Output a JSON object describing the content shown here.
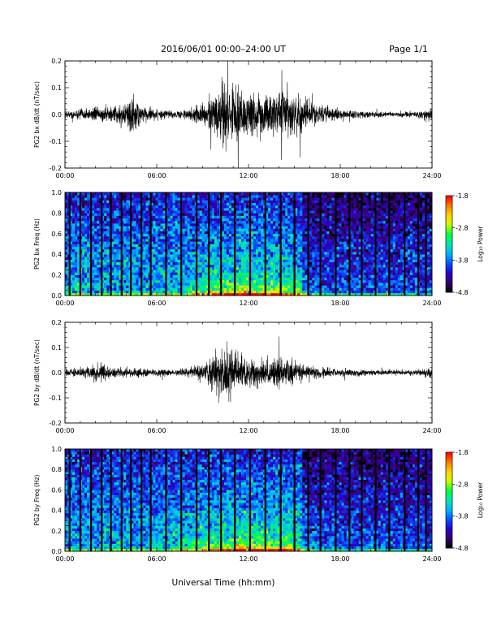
{
  "header": {
    "title": "2016/06/01   00:00–24:00 UT",
    "page": "Page 1/1"
  },
  "x_axis_label": "Universal Time (hh:mm)",
  "colors": {
    "waveform": "#000000",
    "spectrogram_cmap": [
      "#000000",
      "#3b006a",
      "#2a00c8",
      "#0050ff",
      "#00b4ff",
      "#00e6b4",
      "#00ff3c",
      "#c8ff00",
      "#ffd200",
      "#ff7800",
      "#ff0000"
    ]
  },
  "chart_data": [
    {
      "type": "line",
      "ylabel": "PG2 bx dB/dt (nT/sec)",
      "xticks": [
        "00:00",
        "06:00",
        "12:00",
        "18:00",
        "24:00"
      ],
      "xlim": [
        0,
        24
      ],
      "ylim": [
        -0.2,
        0.2
      ],
      "yticks": [
        "0.2",
        "0.1",
        "0.0",
        "-0.1",
        "-0.2"
      ],
      "x_unit": "hours UT",
      "series": [
        {
          "x": [
            0,
            1,
            2,
            3,
            4,
            4.4,
            5,
            6,
            7,
            8,
            9,
            9.5,
            10,
            10.5,
            11,
            11.5,
            12,
            13,
            14,
            14.5,
            15,
            16,
            17,
            18,
            19,
            20,
            21,
            22,
            23,
            24
          ],
          "amplitude": [
            0.015,
            0.02,
            0.025,
            0.03,
            0.04,
            0.09,
            0.035,
            0.02,
            0.015,
            0.02,
            0.04,
            0.07,
            0.1,
            0.14,
            0.12,
            0.1,
            0.09,
            0.08,
            0.08,
            0.1,
            0.07,
            0.05,
            0.03,
            0.02,
            0.015,
            0.012,
            0.01,
            0.01,
            0.012,
            0.03
          ]
        }
      ]
    },
    {
      "type": "heatmap",
      "ylabel": "PG2 bx Freq (Hz)",
      "xticks": [
        "00:00",
        "06:00",
        "12:00",
        "18:00",
        "24:00"
      ],
      "xlim": [
        0,
        24
      ],
      "ylim": [
        0.0,
        1.0
      ],
      "yticks": [
        "1.0",
        "0.8",
        "0.6",
        "0.4",
        "0.2",
        "0.0"
      ],
      "colorbar": {
        "label": "Log₁₀ Power",
        "range": [
          -4.8,
          -1.8
        ],
        "ticks": [
          "-1.8",
          "-2.8",
          "-3.8",
          "-4.8"
        ]
      },
      "data_gaps_hours": [
        0.3,
        1.0,
        1.7,
        2.4,
        3.0,
        3.7,
        4.3,
        5.0,
        5.6,
        6.6,
        7.6,
        8.6,
        9.4,
        10.2,
        11.1,
        12.1,
        13.1,
        14.1,
        15.0,
        15.9,
        16.7,
        17.7,
        18.6,
        19.4,
        20.3,
        21.2,
        22.2,
        23.1,
        23.6
      ]
    },
    {
      "type": "line",
      "ylabel": "PG2 by dB/dt (nT/sec)",
      "xticks": [
        "00:00",
        "06:00",
        "12:00",
        "18:00",
        "24:00"
      ],
      "xlim": [
        0,
        24
      ],
      "ylim": [
        -0.2,
        0.2
      ],
      "yticks": [
        "0.2",
        "0.1",
        "0.0",
        "-0.1",
        "-0.2"
      ],
      "x_unit": "hours UT",
      "series": [
        {
          "x": [
            0,
            1,
            2,
            2.5,
            3,
            4,
            5,
            6,
            7,
            8,
            9,
            9.5,
            10,
            10.5,
            11,
            11.5,
            12,
            13,
            14,
            14.5,
            15,
            16,
            17,
            18,
            19,
            20,
            21,
            22,
            23,
            24
          ],
          "amplitude": [
            0.015,
            0.02,
            0.035,
            0.04,
            0.02,
            0.02,
            0.02,
            0.015,
            0.015,
            0.02,
            0.035,
            0.06,
            0.09,
            0.12,
            0.1,
            0.08,
            0.06,
            0.05,
            0.06,
            0.07,
            0.05,
            0.03,
            0.02,
            0.015,
            0.015,
            0.012,
            0.01,
            0.01,
            0.012,
            0.02
          ]
        }
      ]
    },
    {
      "type": "heatmap",
      "ylabel": "PG2 by Freq (Hz)",
      "xticks": [
        "00:00",
        "06:00",
        "12:00",
        "18:00",
        "24:00"
      ],
      "xlim": [
        0,
        24
      ],
      "ylim": [
        0.0,
        1.0
      ],
      "yticks": [
        "1.0",
        "0.8",
        "0.6",
        "0.4",
        "0.2",
        "0.0"
      ],
      "colorbar": {
        "label": "Log₁₀ Power",
        "range": [
          -4.8,
          -1.8
        ],
        "ticks": [
          "-1.8",
          "-2.8",
          "-3.8",
          "-4.8"
        ]
      },
      "data_gaps_hours": [
        0.3,
        1.0,
        1.7,
        2.4,
        3.0,
        3.7,
        4.3,
        5.0,
        5.6,
        6.6,
        7.6,
        8.6,
        9.4,
        10.2,
        11.1,
        12.1,
        13.1,
        14.1,
        15.0,
        15.9,
        16.7,
        17.7,
        18.6,
        19.4,
        20.3,
        21.2,
        22.2,
        23.1,
        23.6
      ]
    }
  ]
}
